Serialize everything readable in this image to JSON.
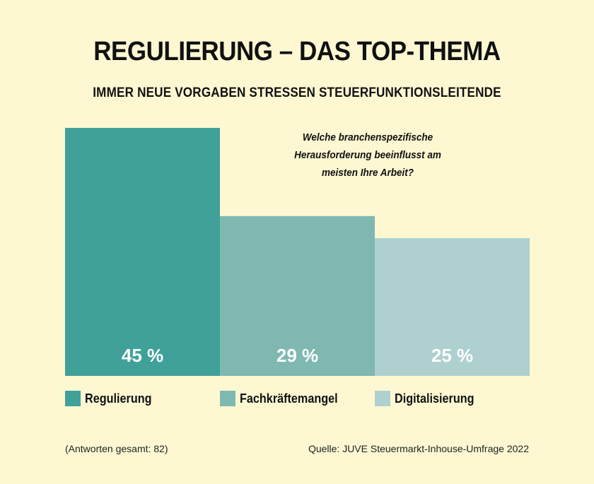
{
  "title": "REGULIERUNG – DAS TOP-THEMA",
  "subtitle": "IMMER NEUE VORGABEN STRESSEN STEUERFUNKTIONSLEITENDE",
  "question": "Welche branchenspezifische Herausforderung beeinflusst am meisten Ihre Arbeit?",
  "footer": {
    "responses": "(Antworten gesamt: 82)",
    "source": "Quelle: JUVE Steuermarkt-Inhouse-Umfrage 2022"
  },
  "chart_data": {
    "type": "bar",
    "categories": [
      "Regulierung",
      "Fachkräftemangel",
      "Digitalisierung"
    ],
    "values": [
      45,
      29,
      25
    ],
    "value_labels": [
      "45 %",
      "29 %",
      "25 %"
    ],
    "colors": [
      "#3fa19a",
      "#7fb8b1",
      "#aed0cf"
    ],
    "unit": "%",
    "ylim": [
      0,
      45
    ],
    "grid": false,
    "legend_position": "bottom"
  }
}
